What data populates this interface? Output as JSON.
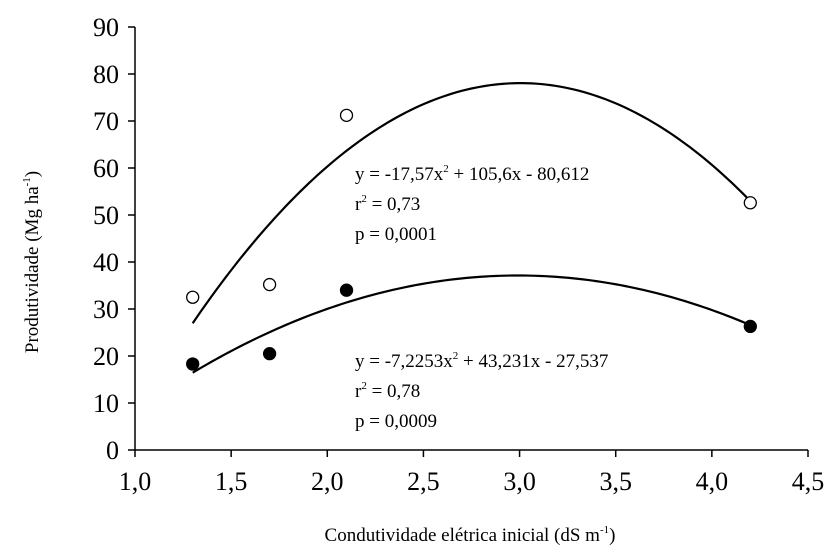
{
  "chart_data": {
    "type": "scatter",
    "xlabel": "Condutividade elétrica inicial (dS m",
    "xlabel_sup": "-1",
    "xlabel_end": ")",
    "ylabel": "Produtividade (Mg ha",
    "ylabel_sup": "-1",
    "ylabel_end": ")",
    "xlim": [
      1.0,
      4.5
    ],
    "ylim": [
      0,
      90
    ],
    "x_ticks": [
      1.0,
      1.5,
      2.0,
      2.5,
      3.0,
      3.5,
      4.0,
      4.5
    ],
    "x_tick_labels": [
      "1,0",
      "1,5",
      "2,0",
      "2,5",
      "3,0",
      "3,5",
      "4,0",
      "4,5"
    ],
    "y_ticks": [
      0,
      10,
      20,
      30,
      40,
      50,
      60,
      70,
      80,
      90
    ],
    "y_tick_labels": [
      "0",
      "10",
      "20",
      "30",
      "40",
      "50",
      "60",
      "70",
      "80",
      "90"
    ],
    "grid": false,
    "series": [
      {
        "marker": "open-circle",
        "color": "#000000",
        "x": [
          1.3,
          1.7,
          2.1,
          4.2
        ],
        "y": [
          32.5,
          35.2,
          71.2,
          52.6
        ],
        "fit": {
          "a": -17.57,
          "b": 105.6,
          "c": -80.612,
          "x_range": [
            1.3,
            4.2
          ]
        },
        "equation_prefix": "y = -17,57x",
        "equation_suffix": " + 105,6x - 80,612",
        "r2": "= 0,73",
        "p": "p = 0,0001"
      },
      {
        "marker": "filled-circle",
        "color": "#000000",
        "x": [
          1.3,
          1.7,
          2.1,
          4.2
        ],
        "y": [
          18.3,
          20.5,
          34.0,
          26.3
        ],
        "fit": {
          "a": -7.2253,
          "b": 43.231,
          "c": -27.537,
          "x_range": [
            1.3,
            4.2
          ]
        },
        "equation_prefix": "y = -7,2253x",
        "equation_suffix": " + 43,231x - 27,537",
        "r2": "= 0,78",
        "p": "p = 0,0009"
      }
    ]
  }
}
